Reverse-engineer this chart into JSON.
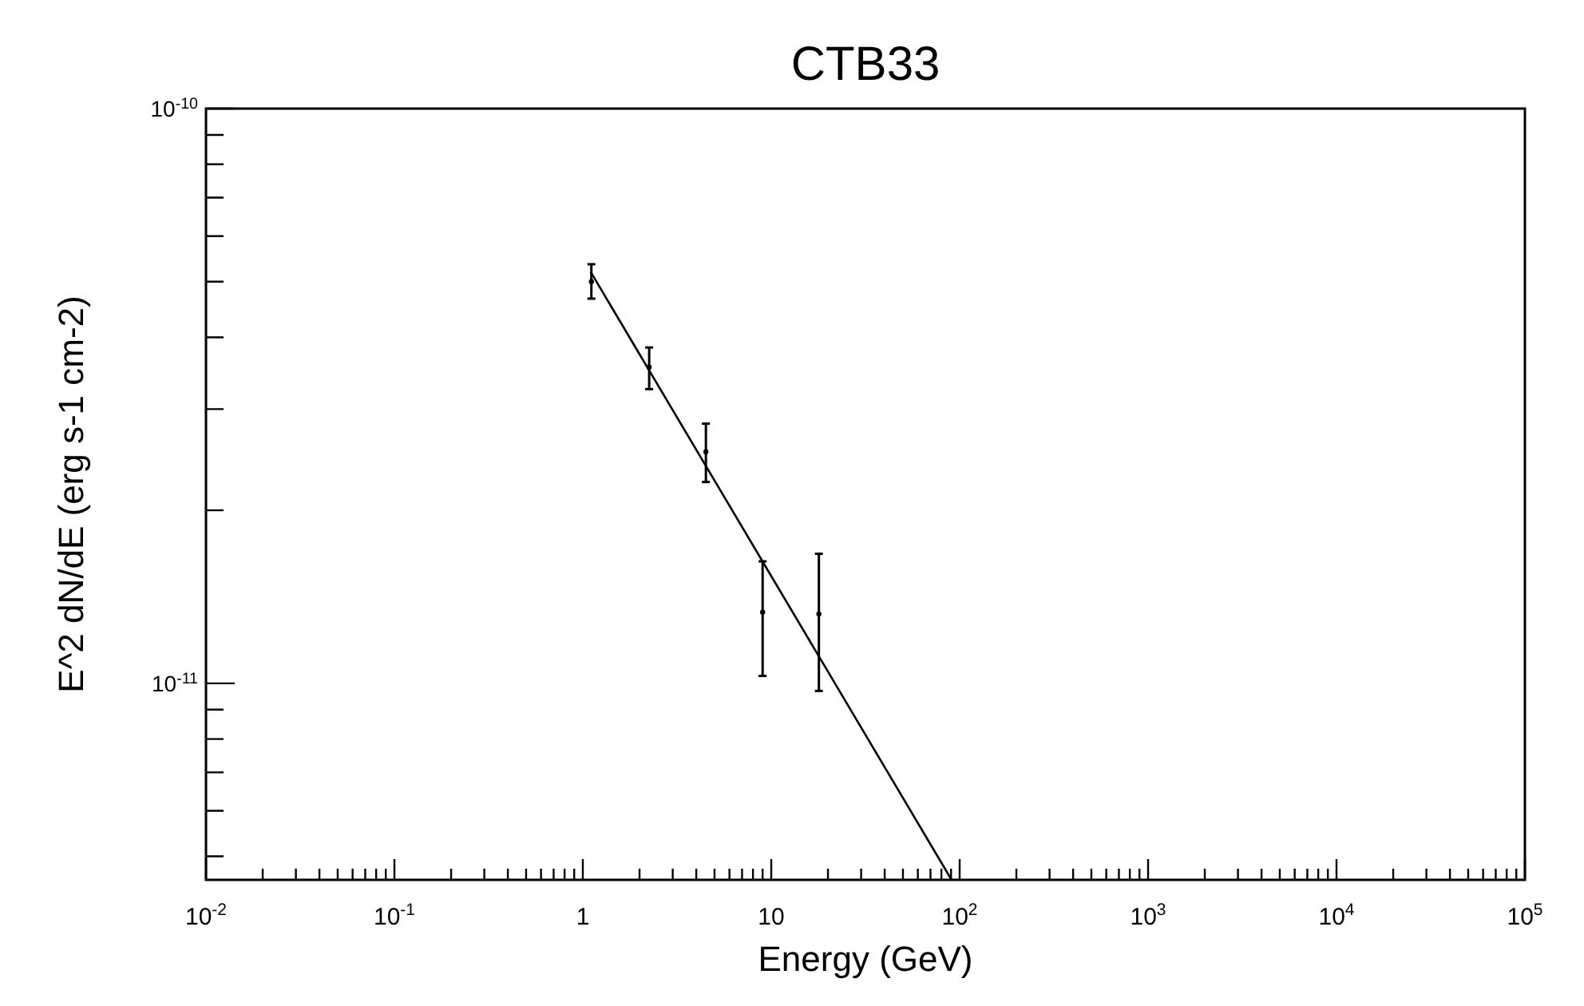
{
  "chart_data": {
    "type": "scatter",
    "title": "CTB33",
    "xlabel": "Energy (GeV)",
    "ylabel": "E^2 dN/dE (erg s-1 cm-2)",
    "log": "xy",
    "grid": false,
    "xlim": [
      0.01,
      100000
    ],
    "ylim": [
      4.55e-12,
      1e-10
    ],
    "xticks": [
      {
        "value": 0.01,
        "label": "10$^{-2}$"
      },
      {
        "value": 0.02,
        "label": null
      },
      {
        "value": 0.03,
        "label": null
      },
      {
        "value": 0.04,
        "label": null
      },
      {
        "value": 0.05,
        "label": null
      },
      {
        "value": 0.06,
        "label": null
      },
      {
        "value": 0.07,
        "label": null
      },
      {
        "value": 0.08,
        "label": null
      },
      {
        "value": 0.09,
        "label": null
      },
      {
        "value": 0.1,
        "label": "10$^{-1}$"
      },
      {
        "value": 0.2,
        "label": null
      },
      {
        "value": 0.3,
        "label": null
      },
      {
        "value": 0.4,
        "label": null
      },
      {
        "value": 0.5,
        "label": null
      },
      {
        "value": 0.6,
        "label": null
      },
      {
        "value": 0.7,
        "label": null
      },
      {
        "value": 0.8,
        "label": null
      },
      {
        "value": 0.9,
        "label": null
      },
      1,
      {
        "value": 2,
        "label": null
      },
      {
        "value": 3,
        "label": null
      },
      {
        "value": 4,
        "label": null
      },
      {
        "value": 5,
        "label": null
      },
      {
        "value": 6,
        "label": null
      },
      {
        "value": 7,
        "label": null
      },
      {
        "value": 8,
        "label": null
      },
      {
        "value": 9,
        "label": null
      },
      10,
      {
        "value": 20,
        "label": null
      },
      {
        "value": 30,
        "label": null
      },
      {
        "value": 40,
        "label": null
      },
      {
        "value": 50,
        "label": null
      },
      {
        "value": 60,
        "label": null
      },
      {
        "value": 70,
        "label": null
      },
      {
        "value": 80,
        "label": null
      },
      {
        "value": 90,
        "label": null
      },
      {
        "value": 100,
        "label": "10$^{2}$"
      },
      {
        "value": 200,
        "label": null
      },
      {
        "value": 300,
        "label": null
      },
      {
        "value": 400,
        "label": null
      },
      {
        "value": 500,
        "label": null
      },
      {
        "value": 600,
        "label": null
      },
      {
        "value": 700,
        "label": null
      },
      {
        "value": 800,
        "label": null
      },
      {
        "value": 900,
        "label": null
      },
      {
        "value": 1000,
        "label": "10$^{3}$"
      },
      {
        "value": 2000,
        "label": null
      },
      {
        "value": 3000,
        "label": null
      },
      {
        "value": 4000,
        "label": null
      },
      {
        "value": 5000,
        "label": null
      },
      {
        "value": 6000,
        "label": null
      },
      {
        "value": 7000,
        "label": null
      },
      {
        "value": 8000,
        "label": null
      },
      {
        "value": 9000,
        "label": null
      },
      {
        "value": 10000,
        "label": "10$^{4}$"
      },
      {
        "value": 20000,
        "label": null
      },
      {
        "value": 30000,
        "label": null
      },
      {
        "value": 40000,
        "label": null
      },
      {
        "value": 50000,
        "label": null
      },
      {
        "value": 60000,
        "label": null
      },
      {
        "value": 70000,
        "label": null
      },
      {
        "value": 80000,
        "label": null
      },
      {
        "value": 90000,
        "label": null
      },
      {
        "value": 100000,
        "label": "10$^{5}$"
      }
    ],
    "yticks": [
      {
        "value": 5e-12,
        "label": null
      },
      {
        "value": 6e-12,
        "label": null
      },
      {
        "value": 7e-12,
        "label": null
      },
      {
        "value": 8e-12,
        "label": null
      },
      {
        "value": 9e-12,
        "label": null
      },
      {
        "value": 1e-11,
        "label": "10$^{-11}$"
      },
      {
        "value": 2e-11,
        "label": null
      },
      {
        "value": 3e-11,
        "label": null
      },
      {
        "value": 4e-11,
        "label": null
      },
      {
        "value": 5e-11,
        "label": null
      },
      {
        "value": 6e-11,
        "label": null
      },
      {
        "value": 7e-11,
        "label": null
      },
      {
        "value": 8e-11,
        "label": null
      },
      {
        "value": 9e-11,
        "label": null
      },
      {
        "value": 1e-10,
        "label": "10$^{-10}$"
      }
    ],
    "series": [
      {
        "color": "#000000",
        "x": [
          1.11,
          2.25,
          4.5,
          9.0,
          17.9
        ],
        "values": [
          5e-11,
          3.55e-11,
          2.53e-11,
          1.33e-11,
          1.32e-11
        ],
        "errors": [
          [
            4.67e-11,
            5.36e-11
          ],
          [
            3.25e-11,
            3.84e-11
          ],
          [
            2.24e-11,
            2.83e-11
          ],
          [
            1.03e-11,
            1.63e-11
          ],
          [
            9.7e-12,
            1.68e-11
          ]
        ]
      },
      {
        "type": "line",
        "color": "#000000",
        "x": [
          1.1,
          90.6
        ],
        "values": [
          5.2e-11,
          4.55e-12
        ]
      }
    ]
  }
}
